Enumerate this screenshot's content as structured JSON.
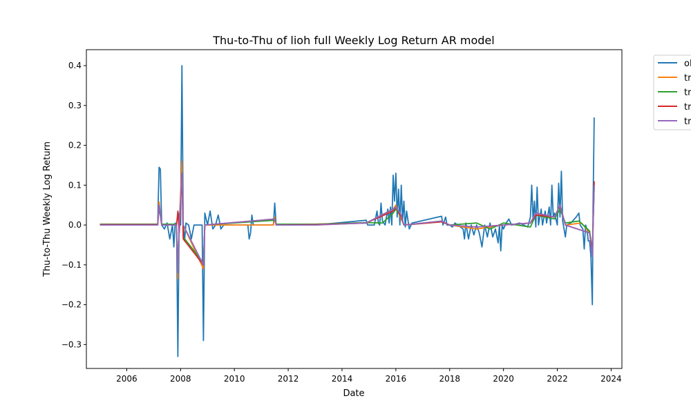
{
  "chart_data": {
    "type": "line",
    "title": "Thu-to-Thu of lioh full Weekly Log Return AR model",
    "xlabel": "Date",
    "ylabel": "Thu-to-Thu Weekly Log Return",
    "xlim": [
      2004.5,
      2024.4
    ],
    "ylim": [
      -0.36,
      0.44
    ],
    "x_ticks": [
      2006,
      2008,
      2010,
      2012,
      2014,
      2016,
      2018,
      2020,
      2022,
      2024
    ],
    "y_ticks": [
      -0.3,
      -0.2,
      -0.1,
      0.0,
      0.1,
      0.2,
      0.3,
      0.4
    ],
    "y_tick_labels": [
      "−0.3",
      "−0.2",
      "−0.1",
      "0.0",
      "0.1",
      "0.2",
      "0.3",
      "0.4"
    ],
    "grid": false,
    "legend_position": "outside-top-right",
    "series": [
      {
        "name": "ol",
        "color": "#1f77b4",
        "points": [
          [
            2005.0,
            0.0
          ],
          [
            2007.0,
            0.0
          ],
          [
            2007.15,
            0.0
          ],
          [
            2007.2,
            0.145
          ],
          [
            2007.25,
            0.14
          ],
          [
            2007.3,
            0.0
          ],
          [
            2007.4,
            -0.01
          ],
          [
            2007.5,
            0.005
          ],
          [
            2007.6,
            -0.035
          ],
          [
            2007.7,
            0.0
          ],
          [
            2007.75,
            -0.055
          ],
          [
            2007.8,
            0.005
          ],
          [
            2007.85,
            0.0
          ],
          [
            2007.9,
            -0.33
          ],
          [
            2007.95,
            0.03
          ],
          [
            2008.0,
            0.0
          ],
          [
            2008.05,
            0.4
          ],
          [
            2008.1,
            0.0
          ],
          [
            2008.15,
            -0.04
          ],
          [
            2008.2,
            0.005
          ],
          [
            2008.3,
            0.0
          ],
          [
            2008.4,
            -0.035
          ],
          [
            2008.5,
            0.0
          ],
          [
            2008.8,
            0.0
          ],
          [
            2008.85,
            -0.29
          ],
          [
            2008.9,
            0.03
          ],
          [
            2009.0,
            0.0
          ],
          [
            2009.1,
            0.035
          ],
          [
            2009.2,
            -0.01
          ],
          [
            2009.3,
            0.0
          ],
          [
            2009.4,
            0.025
          ],
          [
            2009.5,
            -0.01
          ],
          [
            2009.6,
            0.0
          ],
          [
            2010.5,
            0.0
          ],
          [
            2010.55,
            -0.035
          ],
          [
            2010.6,
            -0.02
          ],
          [
            2010.65,
            0.025
          ],
          [
            2010.7,
            0.0
          ],
          [
            2011.45,
            0.0
          ],
          [
            2011.5,
            0.055
          ],
          [
            2011.55,
            0.0
          ],
          [
            2013.0,
            0.0
          ],
          [
            2014.9,
            0.012
          ],
          [
            2014.95,
            0.0
          ],
          [
            2015.2,
            0.0
          ],
          [
            2015.3,
            0.035
          ],
          [
            2015.35,
            0.005
          ],
          [
            2015.4,
            0.0
          ],
          [
            2015.45,
            0.055
          ],
          [
            2015.5,
            0.01
          ],
          [
            2015.6,
            0.0
          ],
          [
            2015.7,
            0.04
          ],
          [
            2015.75,
            0.005
          ],
          [
            2015.8,
            0.045
          ],
          [
            2015.85,
            0.0
          ],
          [
            2015.9,
            0.125
          ],
          [
            2015.95,
            0.06
          ],
          [
            2016.0,
            0.13
          ],
          [
            2016.05,
            0.02
          ],
          [
            2016.1,
            0.09
          ],
          [
            2016.15,
            0.0
          ],
          [
            2016.2,
            0.1
          ],
          [
            2016.25,
            0.01
          ],
          [
            2016.3,
            0.06
          ],
          [
            2016.35,
            -0.005
          ],
          [
            2016.4,
            0.035
          ],
          [
            2016.5,
            -0.01
          ],
          [
            2016.6,
            0.005
          ],
          [
            2017.7,
            0.022
          ],
          [
            2017.75,
            0.0
          ],
          [
            2017.85,
            0.02
          ],
          [
            2017.9,
            0.0
          ],
          [
            2018.0,
            0.0
          ],
          [
            2018.1,
            -0.005
          ],
          [
            2018.2,
            0.005
          ],
          [
            2018.3,
            0.0
          ],
          [
            2018.5,
            -0.01
          ],
          [
            2018.55,
            -0.035
          ],
          [
            2018.6,
            0.005
          ],
          [
            2018.7,
            -0.035
          ],
          [
            2018.8,
            0.0
          ],
          [
            2018.9,
            -0.025
          ],
          [
            2019.0,
            0.0
          ],
          [
            2019.1,
            -0.02
          ],
          [
            2019.2,
            -0.055
          ],
          [
            2019.3,
            0.0
          ],
          [
            2019.4,
            -0.03
          ],
          [
            2019.5,
            0.005
          ],
          [
            2019.6,
            -0.03
          ],
          [
            2019.7,
            -0.01
          ],
          [
            2019.8,
            -0.045
          ],
          [
            2019.85,
            0.0
          ],
          [
            2019.9,
            -0.065
          ],
          [
            2019.95,
            0.0
          ],
          [
            2020.0,
            -0.01
          ],
          [
            2020.1,
            0.005
          ],
          [
            2020.2,
            0.015
          ],
          [
            2020.3,
            0.0
          ],
          [
            2020.6,
            0.005
          ],
          [
            2020.9,
            -0.005
          ],
          [
            2021.0,
            0.02
          ],
          [
            2021.05,
            0.1
          ],
          [
            2021.1,
            0.01
          ],
          [
            2021.15,
            0.06
          ],
          [
            2021.2,
            -0.005
          ],
          [
            2021.25,
            0.095
          ],
          [
            2021.3,
            0.0
          ],
          [
            2021.4,
            0.04
          ],
          [
            2021.45,
            0.0
          ],
          [
            2021.55,
            0.035
          ],
          [
            2021.6,
            0.005
          ],
          [
            2021.7,
            0.045
          ],
          [
            2021.75,
            0.0
          ],
          [
            2021.8,
            0.1
          ],
          [
            2021.85,
            0.02
          ],
          [
            2021.9,
            0.03
          ],
          [
            2022.0,
            0.0
          ],
          [
            2022.05,
            0.105
          ],
          [
            2022.1,
            0.02
          ],
          [
            2022.15,
            0.135
          ],
          [
            2022.2,
            0.01
          ],
          [
            2022.3,
            -0.03
          ],
          [
            2022.35,
            0.0
          ],
          [
            2022.5,
            0.005
          ],
          [
            2022.7,
            0.02
          ],
          [
            2022.8,
            0.03
          ],
          [
            2022.85,
            0.0
          ],
          [
            2022.95,
            -0.01
          ],
          [
            2023.0,
            -0.06
          ],
          [
            2023.05,
            0.0
          ],
          [
            2023.1,
            -0.01
          ],
          [
            2023.15,
            -0.04
          ],
          [
            2023.2,
            -0.04
          ],
          [
            2023.25,
            -0.08
          ],
          [
            2023.3,
            -0.2
          ],
          [
            2023.33,
            0.05
          ],
          [
            2023.37,
            0.27
          ]
        ]
      },
      {
        "name": "tr",
        "color": "#ff7f0e",
        "points": [
          [
            2005.0,
            0.0
          ],
          [
            2007.15,
            0.0
          ],
          [
            2007.2,
            0.058
          ],
          [
            2007.3,
            0.0
          ],
          [
            2007.85,
            0.0
          ],
          [
            2007.9,
            -0.135
          ],
          [
            2007.95,
            0.0
          ],
          [
            2008.05,
            0.16
          ],
          [
            2008.1,
            0.0
          ],
          [
            2008.85,
            -0.11
          ],
          [
            2008.9,
            0.0
          ],
          [
            2011.45,
            0.0
          ],
          [
            2011.5,
            0.02
          ],
          [
            2011.55,
            0.0
          ],
          [
            2013.0,
            0.0
          ],
          [
            2014.9,
            0.005
          ],
          [
            2015.9,
            0.04
          ],
          [
            2016.0,
            0.05
          ],
          [
            2016.1,
            0.03
          ],
          [
            2016.3,
            0.0
          ],
          [
            2017.7,
            0.01
          ],
          [
            2018.0,
            0.0
          ],
          [
            2019.0,
            -0.01
          ],
          [
            2020.0,
            0.0
          ],
          [
            2021.0,
            0.005
          ],
          [
            2021.2,
            0.03
          ],
          [
            2021.9,
            0.02
          ],
          [
            2022.1,
            0.05
          ],
          [
            2022.3,
            0.0
          ],
          [
            2022.9,
            0.005
          ],
          [
            2023.2,
            -0.02
          ],
          [
            2023.3,
            -0.075
          ],
          [
            2023.37,
            0.105
          ]
        ]
      },
      {
        "name": "tr",
        "color": "#2ca02c",
        "points": [
          [
            2005.0,
            0.002
          ],
          [
            2007.15,
            0.002
          ],
          [
            2007.2,
            0.045
          ],
          [
            2007.3,
            0.002
          ],
          [
            2007.85,
            0.002
          ],
          [
            2007.9,
            -0.115
          ],
          [
            2007.95,
            0.0
          ],
          [
            2008.05,
            0.125
          ],
          [
            2008.1,
            -0.03
          ],
          [
            2008.85,
            -0.095
          ],
          [
            2008.9,
            0.0
          ],
          [
            2011.5,
            0.012
          ],
          [
            2011.55,
            0.002
          ],
          [
            2013.0,
            0.002
          ],
          [
            2014.9,
            0.006
          ],
          [
            2015.5,
            0.005
          ],
          [
            2015.9,
            0.03
          ],
          [
            2016.0,
            0.04
          ],
          [
            2016.2,
            0.02
          ],
          [
            2016.3,
            0.0
          ],
          [
            2017.7,
            0.008
          ],
          [
            2018.0,
            0.0
          ],
          [
            2019.0,
            0.005
          ],
          [
            2019.5,
            -0.01
          ],
          [
            2020.0,
            0.005
          ],
          [
            2021.0,
            -0.005
          ],
          [
            2021.2,
            0.025
          ],
          [
            2021.9,
            0.015
          ],
          [
            2022.1,
            0.04
          ],
          [
            2022.3,
            0.005
          ],
          [
            2022.8,
            0.01
          ],
          [
            2023.2,
            -0.015
          ],
          [
            2023.3,
            -0.065
          ],
          [
            2023.37,
            0.095
          ]
        ]
      },
      {
        "name": "tr",
        "color": "#d62728",
        "points": [
          [
            2005.0,
            0.001
          ],
          [
            2007.15,
            0.001
          ],
          [
            2007.2,
            0.048
          ],
          [
            2007.3,
            0.0
          ],
          [
            2007.85,
            0.0
          ],
          [
            2007.9,
            0.035
          ],
          [
            2007.95,
            -0.02
          ],
          [
            2008.05,
            0.13
          ],
          [
            2008.1,
            -0.035
          ],
          [
            2008.85,
            -0.1
          ],
          [
            2008.9,
            0.0
          ],
          [
            2011.5,
            0.015
          ],
          [
            2011.55,
            0.0
          ],
          [
            2013.0,
            0.001
          ],
          [
            2014.9,
            0.005
          ],
          [
            2015.9,
            0.035
          ],
          [
            2016.0,
            0.045
          ],
          [
            2016.2,
            0.02
          ],
          [
            2016.3,
            0.0
          ],
          [
            2017.7,
            0.008
          ],
          [
            2018.0,
            0.0
          ],
          [
            2019.0,
            -0.005
          ],
          [
            2020.0,
            0.0
          ],
          [
            2021.0,
            0.005
          ],
          [
            2021.2,
            0.025
          ],
          [
            2021.9,
            0.02
          ],
          [
            2022.1,
            0.05
          ],
          [
            2022.3,
            0.0
          ],
          [
            2023.2,
            -0.02
          ],
          [
            2023.3,
            -0.07
          ],
          [
            2023.37,
            0.11
          ]
        ]
      },
      {
        "name": "tr",
        "color": "#9467bd",
        "points": [
          [
            2005.0,
            0.0
          ],
          [
            2007.15,
            0.0
          ],
          [
            2007.2,
            0.05
          ],
          [
            2007.3,
            0.0
          ],
          [
            2007.85,
            0.0
          ],
          [
            2007.9,
            -0.12
          ],
          [
            2007.95,
            0.0
          ],
          [
            2008.05,
            0.13
          ],
          [
            2008.1,
            0.0
          ],
          [
            2008.85,
            -0.1
          ],
          [
            2008.9,
            0.0
          ],
          [
            2011.5,
            0.015
          ],
          [
            2011.55,
            0.0
          ],
          [
            2013.0,
            0.0
          ],
          [
            2014.9,
            0.005
          ],
          [
            2015.9,
            0.04
          ],
          [
            2016.0,
            0.045
          ],
          [
            2016.2,
            0.025
          ],
          [
            2016.3,
            0.0
          ],
          [
            2017.7,
            0.01
          ],
          [
            2018.0,
            0.0
          ],
          [
            2019.0,
            -0.005
          ],
          [
            2020.0,
            0.0
          ],
          [
            2021.0,
            0.005
          ],
          [
            2021.2,
            0.03
          ],
          [
            2021.9,
            0.02
          ],
          [
            2022.1,
            0.05
          ],
          [
            2022.3,
            0.0
          ],
          [
            2023.2,
            -0.02
          ],
          [
            2023.3,
            -0.08
          ],
          [
            2023.37,
            0.1
          ]
        ]
      }
    ]
  }
}
